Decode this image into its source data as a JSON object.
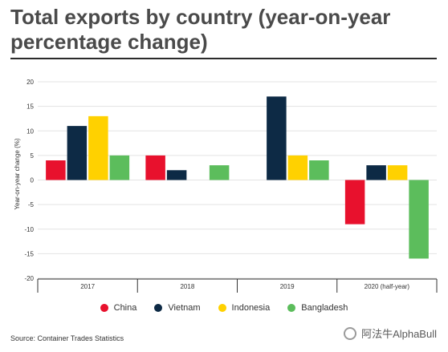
{
  "title": "Total exports by country (year-on-year percentage change)",
  "source": "Source: Container Trades Statistics",
  "watermark": "阿法牛AlphaBull",
  "chart_data": {
    "type": "bar",
    "categories": [
      "2017",
      "2018",
      "2019",
      "2020 (half-year)"
    ],
    "series": [
      {
        "name": "China",
        "color": "#e8112d",
        "values": [
          4,
          5,
          null,
          -9
        ]
      },
      {
        "name": "Vietnam",
        "color": "#0d2a45",
        "values": [
          11,
          2,
          17,
          3
        ]
      },
      {
        "name": "Indonesia",
        "color": "#ffd100",
        "values": [
          13,
          null,
          5,
          3
        ]
      },
      {
        "name": "Bangladesh",
        "color": "#5cbd5c",
        "values": [
          5,
          3,
          4,
          -16
        ]
      }
    ],
    "ylabel": "Year-on-year change (%)",
    "ylim": [
      -20,
      20
    ],
    "yticks": [
      20,
      15,
      10,
      5,
      0,
      -5,
      -10,
      -15,
      -20
    ],
    "grid": true,
    "legend_position": "bottom"
  }
}
